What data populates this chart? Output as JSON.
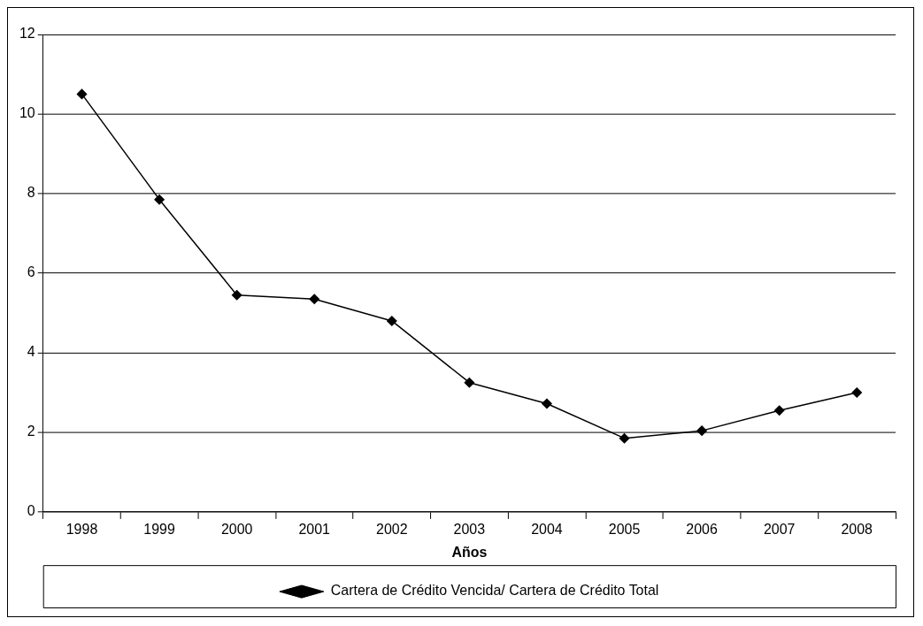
{
  "chart_data": {
    "type": "line",
    "xlabel": "Años",
    "categories": [
      "1998",
      "1999",
      "2000",
      "2001",
      "2002",
      "2003",
      "2004",
      "2005",
      "2006",
      "2007",
      "2008"
    ],
    "series": [
      {
        "name": "Cartera de Crédito Vencida/ Cartera de Crédito Total",
        "color": "#000000",
        "values": [
          10.5,
          7.85,
          5.45,
          5.35,
          4.8,
          3.25,
          2.72,
          1.85,
          2.04,
          2.55,
          3.0
        ]
      }
    ],
    "ylim": [
      0,
      12
    ],
    "yticks": [
      0,
      2,
      4,
      6,
      8,
      10,
      12
    ],
    "grid": "y",
    "legend": "bottom",
    "marker": "diamond",
    "line_style": "solid"
  }
}
